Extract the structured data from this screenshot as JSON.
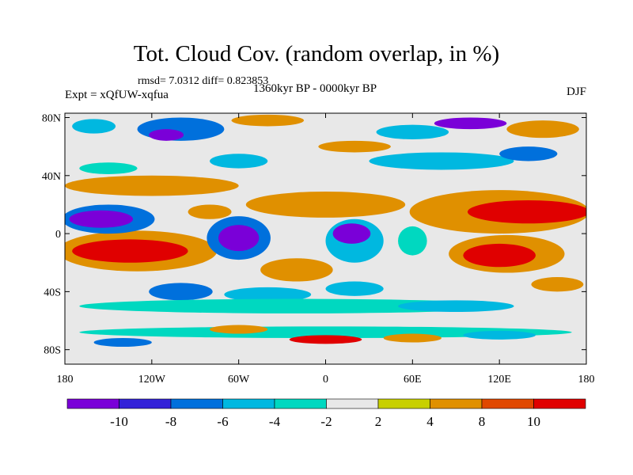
{
  "title": "Tot. Cloud Cov. (random overlap, in %)",
  "stats": "rmsd= 7.0312 diff= 0.823853",
  "experiment": "Expt = xQfUW-xqfua",
  "period": "1360kyr BP - 0000kyr BP",
  "season": "DJF",
  "chart_data": {
    "type": "heatmap",
    "projection": "cylindrical-equidistant",
    "xlim": [
      -180,
      180
    ],
    "ylim": [
      -90,
      83
    ],
    "x_ticks": [
      {
        "value": -180,
        "label": "180"
      },
      {
        "value": -120,
        "label": "120W"
      },
      {
        "value": -60,
        "label": "60W"
      },
      {
        "value": 0,
        "label": "0"
      },
      {
        "value": 60,
        "label": "60E"
      },
      {
        "value": 120,
        "label": "120E"
      },
      {
        "value": 180,
        "label": "180"
      }
    ],
    "y_ticks": [
      {
        "value": 80,
        "label": "80N"
      },
      {
        "value": 40,
        "label": "40N"
      },
      {
        "value": 0,
        "label": "0"
      },
      {
        "value": -40,
        "label": "40S"
      },
      {
        "value": -80,
        "label": "80S"
      }
    ],
    "colorbar": {
      "levels": [
        "-10",
        "-8",
        "-6",
        "-4",
        "-2",
        "2",
        "4",
        "8",
        "10"
      ],
      "colors": [
        "#7a00d8",
        "#3322d8",
        "#0070dc",
        "#00b8e0",
        "#00d8c0",
        "#e8e8e8",
        "#c8d000",
        "#e09000",
        "#e04800",
        "#e00000"
      ]
    },
    "features_note_units": "lon, lat, half-width lon, half-height lat, color class index",
    "features": [
      [
        -120,
        33,
        60,
        7,
        7
      ],
      [
        0,
        20,
        55,
        9,
        7
      ],
      [
        120,
        15,
        62,
        15,
        7
      ],
      [
        140,
        15,
        42,
        8,
        9
      ],
      [
        125,
        -14,
        40,
        13,
        7
      ],
      [
        120,
        -15,
        25,
        8,
        9
      ],
      [
        -130,
        -12,
        55,
        14,
        7
      ],
      [
        -135,
        -12,
        40,
        8,
        9
      ],
      [
        -150,
        10,
        32,
        10,
        2
      ],
      [
        -155,
        10,
        22,
        6,
        0
      ],
      [
        -60,
        -3,
        22,
        15,
        2
      ],
      [
        -60,
        -3,
        14,
        9,
        0
      ],
      [
        20,
        -5,
        20,
        15,
        3
      ],
      [
        18,
        0,
        13,
        7,
        0
      ],
      [
        -100,
        -40,
        22,
        6,
        2
      ],
      [
        -20,
        -25,
        25,
        8,
        7
      ],
      [
        -40,
        -42,
        30,
        5,
        3
      ],
      [
        -20,
        -50,
        150,
        5,
        4
      ],
      [
        90,
        -50,
        40,
        4,
        3
      ],
      [
        20,
        -38,
        20,
        5,
        3
      ],
      [
        0,
        -68,
        170,
        4,
        4
      ],
      [
        0,
        -73,
        25,
        3,
        9
      ],
      [
        -60,
        -66,
        20,
        3,
        7
      ],
      [
        60,
        -72,
        20,
        3,
        7
      ],
      [
        120,
        -70,
        25,
        3,
        3
      ],
      [
        -140,
        -75,
        20,
        3,
        2
      ],
      [
        -100,
        72,
        30,
        8,
        2
      ],
      [
        -110,
        68,
        12,
        4,
        0
      ],
      [
        -40,
        78,
        25,
        4,
        7
      ],
      [
        100,
        76,
        25,
        4,
        0
      ],
      [
        60,
        70,
        25,
        5,
        3
      ],
      [
        150,
        72,
        25,
        6,
        7
      ],
      [
        -160,
        74,
        15,
        5,
        3
      ],
      [
        20,
        60,
        25,
        4,
        7
      ],
      [
        80,
        50,
        50,
        6,
        3
      ],
      [
        140,
        55,
        20,
        5,
        2
      ],
      [
        -60,
        50,
        20,
        5,
        3
      ],
      [
        -150,
        45,
        20,
        4,
        4
      ],
      [
        -80,
        15,
        15,
        5,
        7
      ],
      [
        60,
        -5,
        10,
        10,
        4
      ],
      [
        160,
        -35,
        18,
        5,
        7
      ]
    ]
  }
}
